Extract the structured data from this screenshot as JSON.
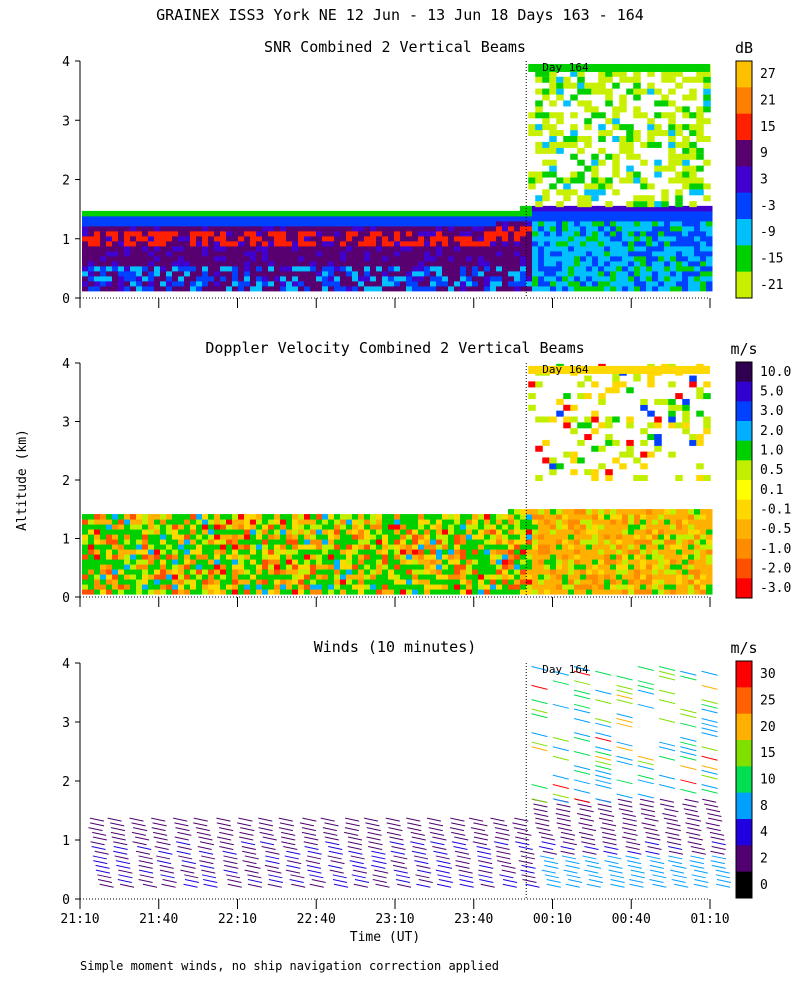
{
  "main_title": "GRAINEX ISS3 York NE  12 Jun - 13 Jun 18 Days 163 - 164",
  "footnote": "Simple moment winds, no ship navigation correction applied",
  "y_axis_label": "Altitude (km)",
  "x_axis_label": "Time (UT)",
  "colors": {
    "snr_scale": [
      "#c8f000",
      "#00d000",
      "#00c0ff",
      "#0040ff",
      "#4000d0",
      "#580070",
      "#ff2000",
      "#ff8000",
      "#ffc000"
    ],
    "doppler_scale": [
      "#ff0000",
      "#ff5000",
      "#ff8c00",
      "#ffb000",
      "#ffd800",
      "#ffff00",
      "#c0f000",
      "#00d000",
      "#00b0ff",
      "#0040ff",
      "#3000d0",
      "#300050"
    ],
    "wind_scale": [
      "#000000",
      "#500070",
      "#2000e0",
      "#00a0ff",
      "#00e050",
      "#80e000",
      "#ffb000",
      "#ff6000",
      "#ff0000"
    ]
  },
  "chart_data": [
    {
      "type": "heatmap",
      "title": "SNR Combined 2 Vertical Beams",
      "xlabel": "",
      "ylabel": "Altitude (km)",
      "x_ticks": [
        "21:10",
        "21:40",
        "22:10",
        "22:40",
        "23:10",
        "23:40",
        "00:10",
        "00:40",
        "01:10"
      ],
      "y_ticks": [
        "0",
        "1",
        "2",
        "3",
        "4"
      ],
      "xlim_minutes": [
        0,
        240
      ],
      "ylim_km": [
        0,
        4
      ],
      "day_marker_label": "Day 164",
      "day_marker_minutes": 170,
      "colorbar_unit": "dB",
      "colorbar_labels": [
        "27",
        "21",
        "15",
        "9",
        "3",
        "-3",
        "-9",
        "-15",
        "-21"
      ],
      "colorbar_range": [
        -21,
        30
      ]
    },
    {
      "type": "heatmap",
      "title": "Doppler Velocity Combined 2 Vertical Beams",
      "xlabel": "",
      "ylabel": "Altitude (km)",
      "x_ticks": [
        "21:10",
        "21:40",
        "22:10",
        "22:40",
        "23:10",
        "23:40",
        "00:10",
        "00:40",
        "01:10"
      ],
      "y_ticks": [
        "0",
        "1",
        "2",
        "3",
        "4"
      ],
      "xlim_minutes": [
        0,
        240
      ],
      "ylim_km": [
        0,
        4
      ],
      "day_marker_label": "Day 164",
      "day_marker_minutes": 170,
      "colorbar_unit": "m/s",
      "colorbar_labels": [
        "10.0",
        "5.0",
        "3.0",
        "2.0",
        "1.0",
        "0.5",
        "0.1",
        "-0.1",
        "-0.5",
        "-1.0",
        "-2.0",
        "-3.0"
      ]
    },
    {
      "type": "scatter",
      "title": "Winds (10 minutes)",
      "xlabel": "Time (UT)",
      "ylabel": "Altitude (km)",
      "x_ticks": [
        "21:10",
        "21:40",
        "22:10",
        "22:40",
        "23:10",
        "23:40",
        "00:10",
        "00:40",
        "01:10"
      ],
      "y_ticks": [
        "0",
        "1",
        "2",
        "3",
        "4"
      ],
      "xlim_minutes": [
        0,
        240
      ],
      "ylim_km": [
        0,
        4
      ],
      "day_marker_label": "Day 164",
      "day_marker_minutes": 170,
      "colorbar_unit": "m/s",
      "colorbar_labels": [
        "30",
        "25",
        "20",
        "15",
        "10",
        "8",
        "4",
        "2",
        "0"
      ],
      "colorbar_range": [
        0,
        35
      ]
    }
  ]
}
